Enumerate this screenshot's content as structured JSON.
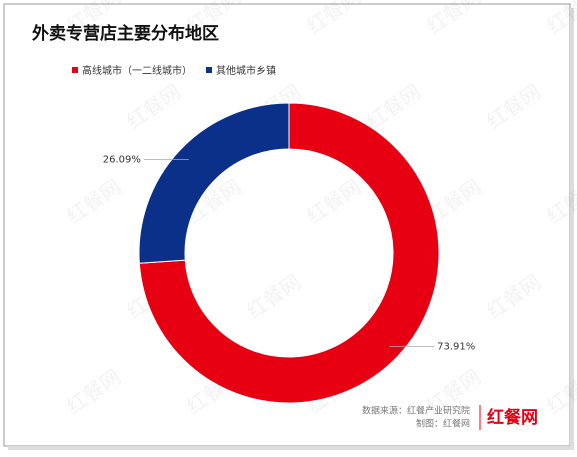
{
  "chart_data": {
    "type": "pie",
    "title": "外卖专营店主要分布地区",
    "categories": [
      "高线城市（一二线城市）",
      "其他城市乡镇"
    ],
    "values": [
      73.91,
      26.09
    ],
    "value_labels": [
      "73.91%",
      "26.09%"
    ],
    "colors": [
      "#e60012",
      "#0b3089"
    ],
    "source": "数据来源：红餐产业研究院",
    "credit": "制图：红餐网",
    "logo": "红餐网",
    "watermark": "红餐网"
  }
}
